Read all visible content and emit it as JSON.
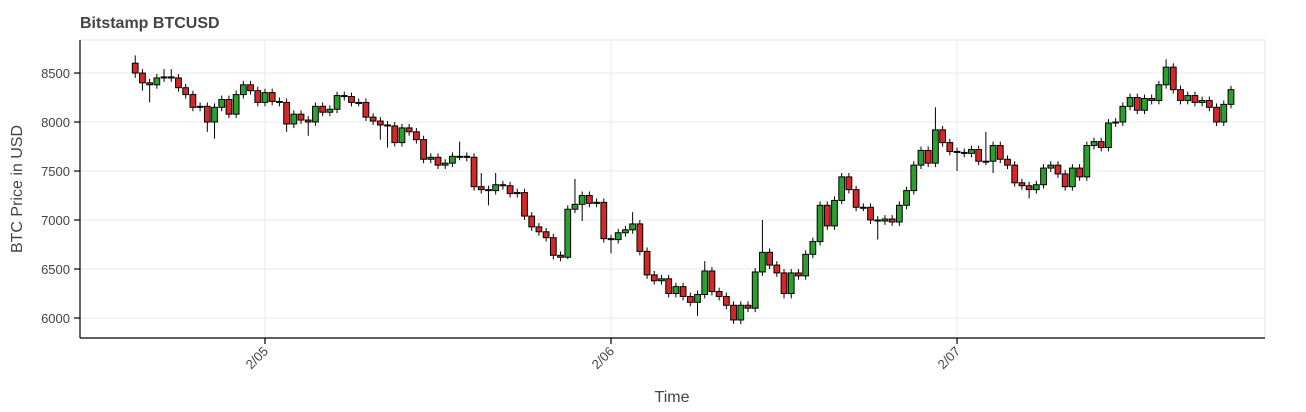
{
  "chart_data": {
    "type": "candlestick",
    "title": "Bitstamp BTCUSD",
    "x_label": "Time",
    "y_label": "BTC Price in USD",
    "up_color": "#2ca02c",
    "down_color": "#d62728",
    "grid": true,
    "xlim": [
      -12.83,
      69.36
    ],
    "xticks": [
      {
        "value": 0,
        "label": "2/05"
      },
      {
        "value": 24,
        "label": "2/06"
      },
      {
        "value": 48,
        "label": "2/07"
      }
    ],
    "ylim": [
      5796,
      8837
    ],
    "yticks": [
      6000,
      6500,
      7000,
      7500,
      8000,
      8500
    ],
    "x": [
      -9,
      -8.5,
      -8,
      -7.5,
      -7,
      -6.5,
      -6,
      -5.5,
      -5,
      -4.5,
      -4,
      -3.5,
      -3,
      -2.5,
      -2,
      -1.5,
      -1,
      -0.5,
      0,
      0.5,
      1,
      1.5,
      2,
      2.5,
      3,
      3.5,
      4,
      4.5,
      5,
      5.5,
      6,
      6.5,
      7,
      7.5,
      8,
      8.5,
      9,
      9.5,
      10,
      10.5,
      11,
      11.5,
      12,
      12.5,
      13,
      13.5,
      14,
      14.5,
      15,
      15.5,
      16,
      16.5,
      17,
      17.5,
      18,
      18.5,
      19,
      19.5,
      20,
      20.5,
      21,
      21.5,
      22,
      22.5,
      23,
      23.5,
      24,
      24.5,
      25,
      25.5,
      26,
      26.5,
      27,
      27.5,
      28,
      28.5,
      29,
      29.5,
      30,
      30.5,
      31,
      31.5,
      32,
      32.5,
      33,
      33.5,
      34,
      34.5,
      35,
      35.5,
      36,
      36.5,
      37,
      37.5,
      38,
      38.5,
      39,
      39.5,
      40,
      40.5,
      41,
      41.5,
      42,
      42.5,
      43,
      43.5,
      44,
      44.5,
      45,
      45.5,
      46,
      46.5,
      47,
      47.5,
      48,
      48.5,
      49,
      49.5,
      50,
      50.5,
      51,
      51.5,
      52,
      52.5,
      53,
      53.5,
      54,
      54.5,
      55,
      55.5,
      56,
      56.5,
      57,
      57.5,
      58,
      58.5,
      59,
      59.5,
      60,
      60.5,
      61,
      61.5,
      62,
      62.5,
      63,
      63.5,
      64,
      64.5,
      65,
      65.5,
      66,
      66.5,
      67
    ],
    "open": [
      8600,
      8500,
      8400,
      8380,
      8450,
      8460,
      8450,
      8350,
      8280,
      8150,
      8160,
      8000,
      8150,
      8230,
      8080,
      8280,
      8380,
      8320,
      8200,
      8300,
      8210,
      8200,
      7980,
      8080,
      8020,
      8000,
      8160,
      8100,
      8130,
      8270,
      8260,
      8200,
      8200,
      8050,
      8010,
      7970,
      7960,
      7790,
      7940,
      7900,
      7820,
      7620,
      7640,
      7560,
      7580,
      7650,
      7650,
      7640,
      7340,
      7310,
      7300,
      7360,
      7350,
      7270,
      7280,
      7040,
      6930,
      6880,
      6820,
      6640,
      6620,
      7110,
      7160,
      7250,
      7170,
      7180,
      6810,
      6800,
      6870,
      6900,
      6960,
      6680,
      6440,
      6380,
      6400,
      6250,
      6320,
      6220,
      6160,
      6240,
      6480,
      6270,
      6220,
      6130,
      5980,
      6130,
      6100,
      6470,
      6670,
      6540,
      6460,
      6250,
      6460,
      6430,
      6650,
      6780,
      7150,
      6940,
      7200,
      7440,
      7310,
      7130,
      7130,
      7000,
      6990,
      7010,
      6980,
      7150,
      7300,
      7560,
      7710,
      7580,
      7920,
      7790,
      7700,
      7690,
      7680,
      7720,
      7600,
      7600,
      7760,
      7620,
      7560,
      7380,
      7350,
      7310,
      7360,
      7530,
      7560,
      7470,
      7340,
      7530,
      7440,
      7760,
      7800,
      7740,
      7990,
      8000,
      8160,
      8250,
      8120,
      8240,
      8220,
      8380,
      8560,
      8330,
      8220,
      8270,
      8200,
      8220,
      8150,
      8000,
      8180
    ],
    "high": [
      8680,
      8540,
      8440,
      8490,
      8540,
      8540,
      8490,
      8390,
      8320,
      8200,
      8200,
      8190,
      8270,
      8270,
      8320,
      8420,
      8420,
      8360,
      8340,
      8340,
      8250,
      8240,
      8120,
      8120,
      8060,
      8200,
      8200,
      8170,
      8310,
      8310,
      8300,
      8240,
      8240,
      8090,
      8050,
      8010,
      8000,
      7980,
      7980,
      7940,
      7860,
      7680,
      7680,
      7620,
      7690,
      7800,
      7690,
      7680,
      7480,
      7350,
      7480,
      7400,
      7390,
      7320,
      7320,
      7080,
      6970,
      6920,
      6860,
      6680,
      7150,
      7420,
      7290,
      7290,
      7220,
      7220,
      6850,
      6910,
      6940,
      7080,
      7000,
      6720,
      6480,
      6440,
      6440,
      6360,
      6360,
      6260,
      6280,
      6580,
      6520,
      6310,
      6260,
      6170,
      6170,
      6170,
      6510,
      7000,
      6710,
      6580,
      6500,
      6500,
      6500,
      6690,
      6820,
      7190,
      7190,
      7240,
      7480,
      7480,
      7350,
      7170,
      7170,
      7040,
      7050,
      7050,
      7190,
      7340,
      7600,
      7750,
      7750,
      8150,
      7960,
      7830,
      7740,
      7730,
      7760,
      7760,
      7900,
      7800,
      7800,
      7660,
      7600,
      7420,
      7390,
      7400,
      7570,
      7600,
      7600,
      7510,
      7570,
      7570,
      7800,
      7840,
      7840,
      8030,
      8040,
      8200,
      8290,
      8290,
      8280,
      8280,
      8420,
      8640,
      8600,
      8370,
      8310,
      8310,
      8260,
      8260,
      8190,
      8220,
      8370
    ],
    "low": [
      8450,
      8320,
      8200,
      8340,
      8410,
      8410,
      8310,
      8240,
      8110,
      8110,
      7900,
      7830,
      8110,
      8040,
      8040,
      8240,
      8280,
      8160,
      8160,
      8170,
      8160,
      7900,
      7940,
      7980,
      7860,
      7960,
      8060,
      8060,
      8090,
      8220,
      8160,
      8160,
      8010,
      7970,
      7820,
      7740,
      7750,
      7750,
      7860,
      7780,
      7580,
      7580,
      7520,
      7520,
      7540,
      7610,
      7600,
      7300,
      7270,
      7150,
      7260,
      7310,
      7230,
      7230,
      7000,
      6890,
      6840,
      6780,
      6600,
      6580,
      6600,
      7070,
      6990,
      7130,
      7130,
      6770,
      6660,
      6760,
      6830,
      6860,
      6640,
      6400,
      6340,
      6340,
      6210,
      6210,
      6180,
      6120,
      6020,
      6200,
      6230,
      6180,
      6090,
      5940,
      5940,
      6060,
      6060,
      6430,
      6500,
      6420,
      6200,
      6200,
      6390,
      6390,
      6610,
      6740,
      6900,
      6900,
      7160,
      7270,
      7090,
      7090,
      6960,
      6800,
      6950,
      6940,
      6940,
      7110,
      7260,
      7520,
      7540,
      7540,
      7750,
      7660,
      7500,
      7640,
      7640,
      7560,
      7560,
      7480,
      7580,
      7520,
      7340,
      7310,
      7220,
      7270,
      7320,
      7490,
      7430,
      7300,
      7300,
      7400,
      7400,
      7720,
      7700,
      7700,
      7950,
      7960,
      8120,
      8080,
      8080,
      8180,
      8180,
      8340,
      8290,
      8180,
      8180,
      8160,
      8160,
      8110,
      7960,
      7960,
      8140
    ],
    "close": [
      8500,
      8400,
      8380,
      8450,
      8460,
      8450,
      8350,
      8280,
      8150,
      8160,
      8000,
      8150,
      8230,
      8080,
      8280,
      8380,
      8320,
      8200,
      8300,
      8210,
      8200,
      7980,
      8080,
      8020,
      8000,
      8160,
      8100,
      8130,
      8270,
      8260,
      8200,
      8200,
      8050,
      8010,
      7970,
      7960,
      7790,
      7940,
      7900,
      7820,
      7620,
      7640,
      7560,
      7580,
      7650,
      7650,
      7640,
      7340,
      7310,
      7300,
      7360,
      7350,
      7270,
      7280,
      7040,
      6930,
      6880,
      6820,
      6640,
      6620,
      7110,
      7160,
      7250,
      7170,
      7180,
      6810,
      6800,
      6870,
      6900,
      6960,
      6680,
      6440,
      6380,
      6400,
      6250,
      6320,
      6220,
      6160,
      6240,
      6480,
      6270,
      6220,
      6130,
      5980,
      6130,
      6100,
      6470,
      6670,
      6540,
      6460,
      6250,
      6460,
      6430,
      6650,
      6780,
      7150,
      6940,
      7200,
      7440,
      7310,
      7130,
      7130,
      7000,
      6990,
      7010,
      6980,
      7150,
      7300,
      7560,
      7710,
      7580,
      7920,
      7790,
      7700,
      7690,
      7680,
      7720,
      7600,
      7600,
      7760,
      7620,
      7560,
      7380,
      7350,
      7310,
      7360,
      7530,
      7560,
      7470,
      7340,
      7530,
      7440,
      7760,
      7800,
      7740,
      7990,
      8000,
      8160,
      8250,
      8120,
      8240,
      8220,
      8380,
      8560,
      8330,
      8220,
      8270,
      8200,
      8220,
      8150,
      8000,
      8180,
      8330
    ]
  }
}
